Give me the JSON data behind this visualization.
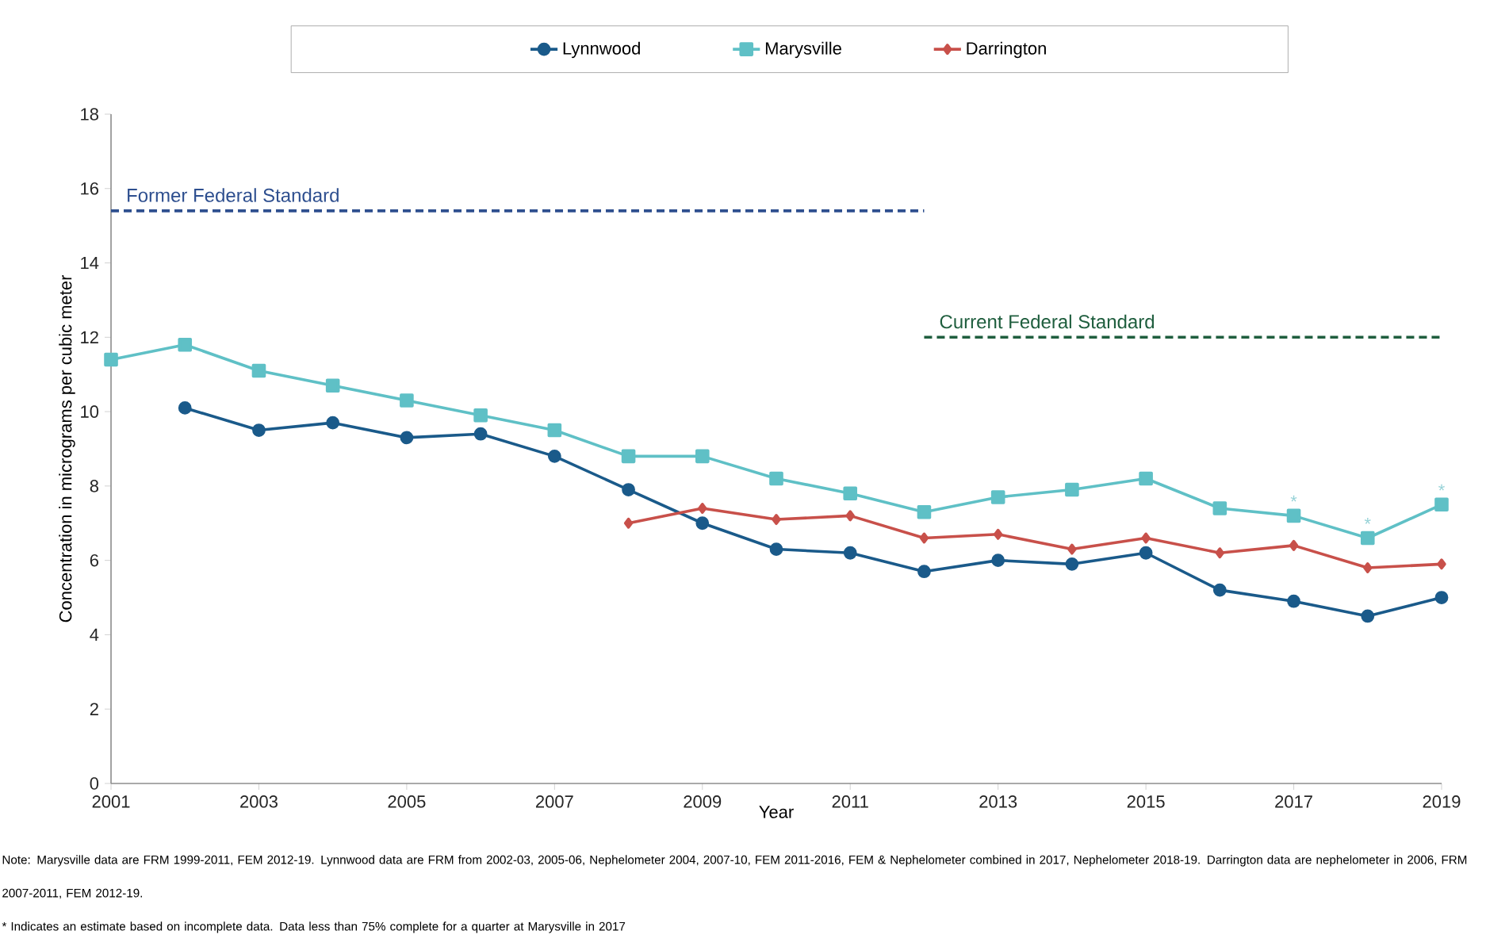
{
  "chart_data": {
    "type": "line",
    "xlabel": "Year",
    "ylabel": "Concentration in micrograms per cubic meter",
    "xlim": [
      2001,
      2019
    ],
    "xticks": [
      2001,
      2003,
      2005,
      2007,
      2009,
      2011,
      2013,
      2015,
      2017,
      2019
    ],
    "ylim": [
      0,
      18
    ],
    "yticks": [
      0,
      2,
      4,
      6,
      8,
      10,
      12,
      14,
      16,
      18
    ],
    "grid": false,
    "legend": "top",
    "line_style": "solid",
    "series": [
      {
        "name": "Lynnwood",
        "color": "#1a5a8a",
        "marker": "circle",
        "x": [
          2002,
          2003,
          2004,
          2005,
          2006,
          2007,
          2008,
          2009,
          2010,
          2011,
          2012,
          2013,
          2014,
          2015,
          2016,
          2017,
          2018,
          2019
        ],
        "values": [
          10.1,
          9.5,
          9.7,
          9.3,
          9.4,
          8.8,
          7.9,
          7.0,
          6.3,
          6.2,
          5.7,
          6.0,
          5.9,
          6.2,
          5.2,
          4.9,
          4.5,
          5.0
        ]
      },
      {
        "name": "Marysville",
        "color": "#5fc0c6",
        "marker": "square",
        "x": [
          2001,
          2002,
          2003,
          2004,
          2005,
          2006,
          2007,
          2008,
          2009,
          2010,
          2011,
          2012,
          2013,
          2014,
          2015,
          2016,
          2017,
          2018,
          2019
        ],
        "values": [
          11.4,
          11.8,
          11.1,
          10.7,
          10.3,
          9.9,
          9.5,
          8.8,
          8.8,
          8.2,
          7.8,
          7.3,
          7.7,
          7.9,
          8.2,
          7.4,
          7.2,
          6.6,
          7.5
        ]
      },
      {
        "name": "Darrington",
        "color": "#c8504a",
        "marker": "diamond",
        "x": [
          2008,
          2009,
          2010,
          2011,
          2012,
          2013,
          2014,
          2015,
          2016,
          2017,
          2018,
          2019
        ],
        "values": [
          7.0,
          7.4,
          7.1,
          7.2,
          6.6,
          6.7,
          6.3,
          6.6,
          6.2,
          6.4,
          5.8,
          5.9
        ]
      },
      {
        "name": "Former Federal Standard",
        "color": "#2e4f8f",
        "marker": "none",
        "line_style": "dashed",
        "x": [
          2001,
          2012
        ],
        "values": [
          15.4,
          15.4
        ]
      },
      {
        "name": "Current Federal Standard",
        "color": "#1f5e3e",
        "marker": "none",
        "line_style": "dashed",
        "x": [
          2012,
          2019
        ],
        "values": [
          12,
          12
        ]
      }
    ],
    "annotations": [
      {
        "text": "*",
        "x": 2017,
        "y": 7.2
      },
      {
        "text": "*",
        "x": 2018,
        "y": 6.6
      },
      {
        "text": "*",
        "x": 2019,
        "y": 7.5
      },
      "Note: Marysville data are FRM 1999-2011, FEM 2012-19. Lynnwood data are FRM from 2002-03, 2005-06, Nephelometer 2004, 2007-10, FEM 2011-2016, FEM & Nephelometer combined in 2017, Nephelometer 2018-19.  Darrington data are nephelometer in 2006, FRM 2007-2011, FEM 2012-19.",
      "* Indicates an estimate based on incomplete data. Data less than 75% complete for a quarter at Marysville in 2017"
    ]
  }
}
